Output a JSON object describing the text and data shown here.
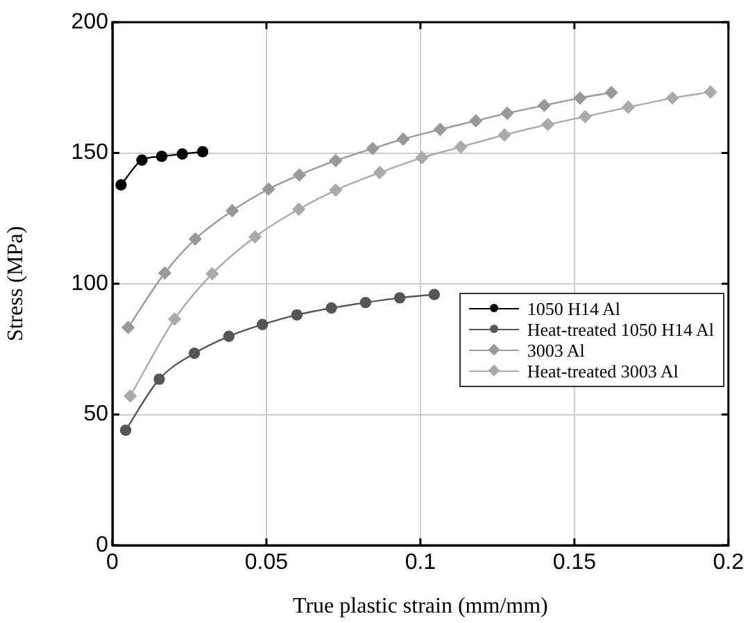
{
  "chart_data": {
    "type": "line",
    "xlabel": "True plastic strain (mm/mm)",
    "ylabel": "Stress (MPa)",
    "xlim": [
      0,
      0.2
    ],
    "xticks": [
      0,
      0.05,
      0.1,
      0.15,
      0.2
    ],
    "ylim": [
      0,
      200
    ],
    "yticks": [
      0,
      50,
      100,
      150,
      200
    ],
    "grid": true,
    "legend": "right",
    "line_style": "solid",
    "series": [
      {
        "name": "1050 H14 Al",
        "color": "#000000",
        "marker": "circle",
        "x": [
          0.0028,
          0.0096,
          0.016,
          0.0227,
          0.0293
        ],
        "values": [
          137.8,
          147.3,
          148.7,
          149.6,
          150.5
        ]
      },
      {
        "name": "Heat-treated 1050 H14 Al",
        "color": "#555555",
        "marker": "circle",
        "x": [
          0.0043,
          0.0152,
          0.0266,
          0.0378,
          0.0487,
          0.0599,
          0.0711,
          0.0822,
          0.0933,
          0.1045
        ],
        "values": [
          44,
          63.5,
          73.4,
          79.9,
          84.4,
          88.1,
          90.7,
          92.8,
          94.6,
          95.9
        ]
      },
      {
        "name": "3003 Al",
        "color": "#999999",
        "marker": "diamond",
        "x": [
          0.0051,
          0.017,
          0.0269,
          0.0389,
          0.0507,
          0.0607,
          0.0725,
          0.0845,
          0.0944,
          0.1064,
          0.118,
          0.1282,
          0.1402,
          0.1518,
          0.162
        ],
        "values": [
          83.3,
          104.1,
          117.1,
          127.9,
          136.2,
          141.6,
          147.1,
          151.7,
          155.3,
          159,
          162.3,
          165.2,
          168.2,
          171,
          173.1
        ]
      },
      {
        "name": "Heat-treated 3003 Al",
        "color": "#aaaaaa",
        "marker": "diamond",
        "x": [
          0.0058,
          0.0202,
          0.0324,
          0.0463,
          0.0605,
          0.0725,
          0.0868,
          0.1005,
          0.1131,
          0.1273,
          0.1414,
          0.1535,
          0.1675,
          0.1818,
          0.1942
        ],
        "values": [
          57.1,
          86.5,
          103.8,
          117.9,
          128.5,
          135.8,
          142.5,
          148.2,
          152.3,
          156.9,
          160.9,
          163.9,
          167.5,
          171,
          173.3
        ]
      }
    ]
  }
}
